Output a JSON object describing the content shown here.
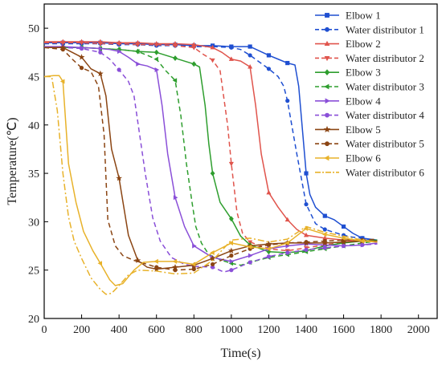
{
  "chart_data": {
    "type": "line",
    "title": "",
    "xlabel": "Time(s)",
    "ylabel": "Temperature(℃)",
    "xlim": [
      0,
      2100
    ],
    "ylim": [
      20,
      52.5
    ],
    "xticks": [
      0,
      200,
      400,
      600,
      800,
      1000,
      1200,
      1400,
      1600,
      1800,
      2000
    ],
    "yticks": [
      20,
      25,
      30,
      35,
      40,
      45,
      50
    ],
    "grid": false,
    "legend": "top-right",
    "series": [
      {
        "name": "Elbow 1",
        "color": "#1f4fd1",
        "dash": "solid",
        "marker": "square",
        "x": [
          0,
          100,
          200,
          300,
          400,
          500,
          600,
          700,
          800,
          900,
          1000,
          1100,
          1200,
          1250,
          1300,
          1340,
          1360,
          1380,
          1400,
          1420,
          1450,
          1500,
          1550,
          1600,
          1650,
          1700,
          1780
        ],
        "y": [
          48.5,
          48.5,
          48.5,
          48.5,
          48.4,
          48.4,
          48.3,
          48.3,
          48.2,
          48.2,
          48.1,
          48.1,
          47.2,
          46.8,
          46.4,
          46.2,
          44,
          39.5,
          35,
          32.8,
          31.5,
          30.6,
          30.2,
          29.5,
          28.8,
          28.3,
          28.1
        ]
      },
      {
        "name": "Water distributor 1",
        "color": "#1f4fd1",
        "dash": "dash",
        "marker": "circle",
        "x": [
          0,
          100,
          200,
          300,
          400,
          500,
          600,
          700,
          800,
          900,
          1000,
          1050,
          1100,
          1150,
          1200,
          1250,
          1280,
          1300,
          1350,
          1400,
          1450,
          1500,
          1550,
          1600,
          1650,
          1700,
          1780
        ],
        "y": [
          48.4,
          48.4,
          48.4,
          48.4,
          48.3,
          48.3,
          48.2,
          48.2,
          48.1,
          48.1,
          48.0,
          47.8,
          47.2,
          46.5,
          45.8,
          45,
          44,
          42.5,
          37,
          31.8,
          29.8,
          29.2,
          28.9,
          28.6,
          28.4,
          28.3,
          28.0
        ]
      },
      {
        "name": "Elbow 2",
        "color": "#e0544c",
        "dash": "solid",
        "marker": "triangle-up",
        "x": [
          0,
          100,
          200,
          300,
          400,
          500,
          600,
          700,
          800,
          900,
          950,
          1000,
          1050,
          1100,
          1130,
          1160,
          1200,
          1250,
          1300,
          1350,
          1400,
          1500,
          1600,
          1700,
          1780
        ],
        "y": [
          48.6,
          48.6,
          48.6,
          48.6,
          48.5,
          48.5,
          48.4,
          48.4,
          48.3,
          48.0,
          47.5,
          46.8,
          46.6,
          46.0,
          42,
          37,
          33,
          31.5,
          30.2,
          29.2,
          28.6,
          28.3,
          28.1,
          28.0,
          28.0
        ]
      },
      {
        "name": "Water distributor 2",
        "color": "#e0544c",
        "dash": "dash",
        "marker": "triangle-down",
        "x": [
          0,
          100,
          200,
          300,
          400,
          500,
          600,
          700,
          800,
          850,
          900,
          940,
          980,
          1000,
          1030,
          1060,
          1100,
          1200,
          1300,
          1400,
          1500,
          1600,
          1700,
          1780
        ],
        "y": [
          48.5,
          48.5,
          48.5,
          48.4,
          48.4,
          48.3,
          48.3,
          48.2,
          48.0,
          47.3,
          46.7,
          45.6,
          40,
          36,
          31,
          28.8,
          27.9,
          27.2,
          27.0,
          27.3,
          27.6,
          27.9,
          28.0,
          28.1
        ]
      },
      {
        "name": "Elbow 3",
        "color": "#2e9e2e",
        "dash": "solid",
        "marker": "diamond",
        "x": [
          0,
          100,
          200,
          300,
          400,
          500,
          600,
          700,
          800,
          830,
          860,
          880,
          900,
          940,
          1000,
          1050,
          1100,
          1200,
          1300,
          1400,
          1500,
          1600,
          1700,
          1780
        ],
        "y": [
          48.0,
          48.0,
          48.0,
          47.9,
          47.8,
          47.6,
          47.5,
          46.9,
          46.3,
          46.0,
          42,
          38,
          35,
          32,
          30.3,
          28.5,
          27.6,
          26.9,
          26.8,
          27.0,
          27.5,
          27.8,
          28.0,
          28.1
        ]
      },
      {
        "name": "Water distributor 3",
        "color": "#2e9e2e",
        "dash": "dash",
        "marker": "triangle-left",
        "x": [
          0,
          100,
          200,
          300,
          400,
          500,
          600,
          650,
          700,
          730,
          760,
          790,
          810,
          840,
          880,
          950,
          1000,
          1050,
          1100,
          1200,
          1300,
          1400,
          1500,
          1600,
          1700,
          1780
        ],
        "y": [
          48.0,
          48.0,
          48.0,
          47.9,
          47.8,
          47.6,
          46.8,
          45.6,
          44.6,
          41,
          36,
          32,
          29.5,
          27.8,
          26.6,
          26.0,
          25.7,
          25.5,
          25.8,
          26.3,
          26.6,
          26.9,
          27.2,
          27.5,
          27.8,
          28.0
        ]
      },
      {
        "name": "Elbow 4",
        "color": "#8a4fd8",
        "dash": "solid",
        "marker": "triangle-right",
        "x": [
          0,
          100,
          200,
          300,
          350,
          400,
          450,
          500,
          550,
          600,
          630,
          660,
          700,
          750,
          800,
          900,
          1000,
          1100,
          1200,
          1300,
          1400,
          1500,
          1600,
          1700,
          1780
        ],
        "y": [
          48.1,
          48.1,
          48.0,
          47.9,
          47.8,
          47.6,
          47.0,
          46.3,
          46.1,
          45.7,
          42,
          37,
          32.5,
          29.5,
          27.5,
          26.3,
          25.9,
          26.5,
          27.2,
          27.5,
          27.7,
          27.6,
          27.5,
          27.6,
          27.8
        ]
      },
      {
        "name": "Water distributor 4",
        "color": "#8a4fd8",
        "dash": "dash",
        "marker": "circle",
        "x": [
          0,
          100,
          200,
          300,
          350,
          400,
          450,
          480,
          510,
          540,
          580,
          620,
          680,
          750,
          800,
          900,
          960,
          1000,
          1100,
          1200,
          1300,
          1400,
          1500,
          1600,
          1700,
          1780
        ],
        "y": [
          48.0,
          48.0,
          47.9,
          47.5,
          46.8,
          45.7,
          44.5,
          43.0,
          39,
          35,
          30.4,
          28,
          26.3,
          25.6,
          25.4,
          25.3,
          24.8,
          25.0,
          25.8,
          26.4,
          26.8,
          27.1,
          27.3,
          27.5,
          27.6,
          27.7
        ]
      },
      {
        "name": "Elbow 5",
        "color": "#8b4513",
        "dash": "solid",
        "marker": "star",
        "x": [
          0,
          100,
          200,
          250,
          300,
          330,
          360,
          400,
          450,
          500,
          550,
          600,
          700,
          800,
          900,
          1000,
          1100,
          1200,
          1300,
          1400,
          1500,
          1600,
          1700,
          1780
        ],
        "y": [
          48.0,
          48.0,
          47.0,
          45.8,
          45.3,
          43,
          37.5,
          34.5,
          28.6,
          26.0,
          25.3,
          25.1,
          25.3,
          25.5,
          26.2,
          27.0,
          27.5,
          27.7,
          27.8,
          27.8,
          27.8,
          27.9,
          28.0,
          28.0
        ]
      },
      {
        "name": "Water distributor 5",
        "color": "#8b4513",
        "dash": "dash",
        "marker": "circle",
        "x": [
          0,
          100,
          150,
          200,
          250,
          290,
          320,
          340,
          380,
          420,
          480,
          550,
          600,
          700,
          800,
          900,
          1000,
          1100,
          1200,
          1300,
          1400,
          1500,
          1600,
          1700,
          1780
        ],
        "y": [
          48.0,
          47.8,
          46.8,
          45.9,
          45.5,
          44,
          39,
          30.2,
          27.5,
          26.5,
          26.0,
          25.6,
          25.3,
          25.0,
          25.1,
          25.6,
          26.5,
          27.2,
          27.6,
          27.8,
          27.9,
          28.0,
          28.1,
          28.1,
          28.2
        ]
      },
      {
        "name": "Elbow 6",
        "color": "#e8b22a",
        "dash": "solid",
        "marker": "triangle-left",
        "x": [
          0,
          50,
          80,
          100,
          130,
          170,
          210,
          260,
          300,
          350,
          380,
          420,
          480,
          530,
          600,
          700,
          800,
          900,
          1000,
          1100,
          1200,
          1300,
          1400,
          1500,
          1600,
          1700,
          1780
        ],
        "y": [
          45.0,
          45.1,
          45.1,
          44.5,
          36,
          32,
          29.0,
          27.0,
          25.7,
          24.0,
          23.4,
          23.6,
          25.0,
          25.8,
          25.9,
          25.9,
          25.6,
          26.8,
          27.8,
          27.4,
          27.2,
          27.8,
          29.3,
          28.7,
          28.3,
          28.0,
          27.9
        ]
      },
      {
        "name": "Water distributor 6",
        "color": "#e8b22a",
        "dash": "dashdot",
        "marker": "none",
        "x": [
          0,
          40,
          70,
          100,
          130,
          160,
          200,
          250,
          300,
          330,
          360,
          400,
          450,
          500,
          600,
          700,
          800,
          900,
          1000,
          1100,
          1200,
          1300,
          1400,
          1500,
          1600,
          1700,
          1780
        ],
        "y": [
          45.0,
          45.0,
          41.5,
          35,
          30.5,
          28,
          26.2,
          24.2,
          23.0,
          22.5,
          22.6,
          23.4,
          24.5,
          25.0,
          24.9,
          24.6,
          24.7,
          26.0,
          28.1,
          28.3,
          27.9,
          28.2,
          29.5,
          28.9,
          28.5,
          28.1,
          27.9
        ]
      }
    ]
  }
}
